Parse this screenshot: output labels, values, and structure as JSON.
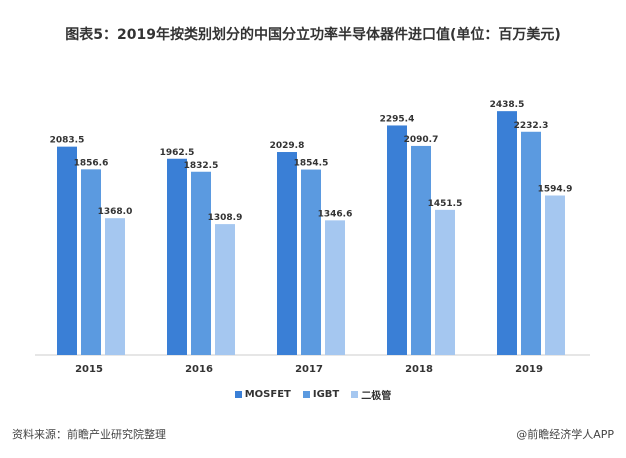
{
  "chart_data": {
    "type": "bar",
    "title": "图表5：2019年按类别划分的中国分立功率半导体器件进口值(单位：百万美元)",
    "categories": [
      "2015",
      "2016",
      "2017",
      "2018",
      "2019"
    ],
    "series": [
      {
        "name": "MOSFET",
        "color": "#3a7fd6",
        "values": [
          2083.5,
          1962.5,
          2029.8,
          2295.4,
          2438.5
        ]
      },
      {
        "name": "IGBT",
        "color": "#5b9ae0",
        "values": [
          1856.6,
          1832.5,
          1854.5,
          2090.7,
          2232.3
        ]
      },
      {
        "name": "二极管",
        "color": "#a5c7f0",
        "values": [
          1368.0,
          1308.9,
          1346.6,
          1451.5,
          1594.9
        ]
      }
    ],
    "ylim": [
      0,
      2600
    ],
    "grid": false,
    "legend_position": "bottom"
  },
  "footer": {
    "source": "资料来源：前瞻产业研究院整理",
    "credit": "@前瞻经济学人APP"
  }
}
